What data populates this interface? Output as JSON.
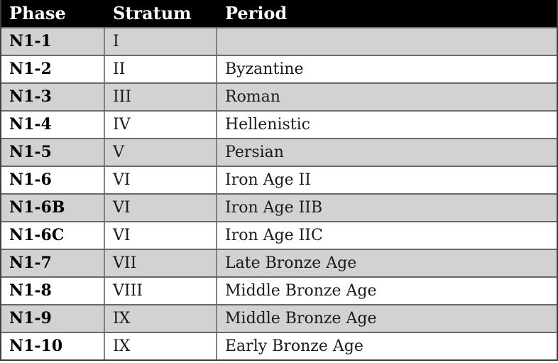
{
  "table": {
    "headers": [
      "Phase",
      "Stratum",
      "Period"
    ],
    "rows": [
      {
        "phase": "N1-1",
        "stratum": "I",
        "period": ""
      },
      {
        "phase": "N1-2",
        "stratum": "II",
        "period": "Byzantine"
      },
      {
        "phase": "N1-3",
        "stratum": "III",
        "period": "Roman"
      },
      {
        "phase": "N1-4",
        "stratum": "IV",
        "period": "Hellenistic"
      },
      {
        "phase": "N1-5",
        "stratum": "V",
        "period": "Persian"
      },
      {
        "phase": "N1-6",
        "stratum": "VI",
        "period": "Iron Age II"
      },
      {
        "phase": "N1-6B",
        "stratum": "VI",
        "period": "Iron Age IIB"
      },
      {
        "phase": "N1-6C",
        "stratum": "VI",
        "period": "Iron Age IIC"
      },
      {
        "phase": "N1-7",
        "stratum": "VII",
        "period": "Late Bronze Age"
      },
      {
        "phase": "N1-8",
        "stratum": "VIII",
        "period": "Middle Bronze Age"
      },
      {
        "phase": "N1-9",
        "stratum": "IX",
        "period": "Middle Bronze Age"
      },
      {
        "phase": "N1-10",
        "stratum": "IX",
        "period": "Early Bronze Age"
      }
    ]
  },
  "colors": {
    "header_bg": "#000000",
    "header_text": "#ffffff",
    "row_shaded": "#d2d2d2",
    "row_plain": "#ffffff",
    "grid_line": "#696969",
    "grid_line_v": "#808080",
    "outer_border": "#3f3f3f",
    "body_text": "#1a1a1a"
  },
  "chart_data": {
    "type": "table",
    "columns": [
      "Phase",
      "Stratum",
      "Period"
    ],
    "rows": [
      [
        "N1-1",
        "I",
        ""
      ],
      [
        "N1-2",
        "II",
        "Byzantine"
      ],
      [
        "N1-3",
        "III",
        "Roman"
      ],
      [
        "N1-4",
        "IV",
        "Hellenistic"
      ],
      [
        "N1-5",
        "V",
        "Persian"
      ],
      [
        "N1-6",
        "VI",
        "Iron Age II"
      ],
      [
        "N1-6B",
        "VI",
        "Iron Age IIB"
      ],
      [
        "N1-6C",
        "VI",
        "Iron Age IIC"
      ],
      [
        "N1-7",
        "VII",
        "Late Bronze Age"
      ],
      [
        "N1-8",
        "VIII",
        "Middle Bronze Age"
      ],
      [
        "N1-9",
        "IX",
        "Middle Bronze Age"
      ],
      [
        "N1-10",
        "IX",
        "Early Bronze Age"
      ]
    ]
  }
}
